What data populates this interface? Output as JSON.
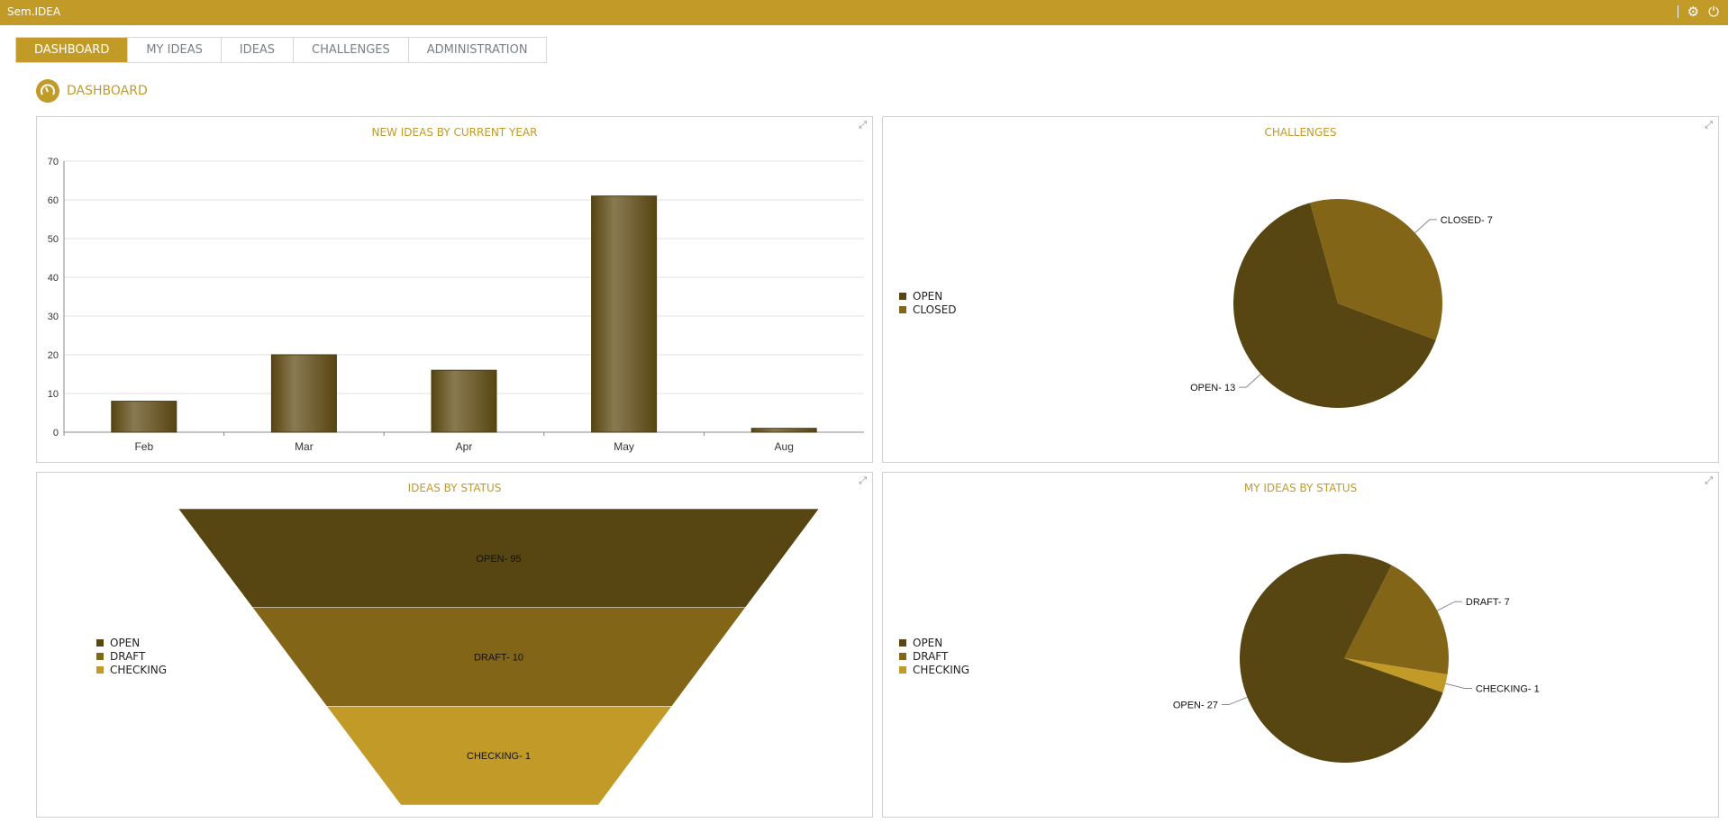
{
  "app": {
    "title": "Sem.IDEA",
    "icons": [
      "settings-icon",
      "power-icon"
    ]
  },
  "tabs": [
    {
      "label": "DASHBOARD",
      "active": true
    },
    {
      "label": "MY IDEAS"
    },
    {
      "label": "IDEAS"
    },
    {
      "label": "CHALLENGES"
    },
    {
      "label": "ADMINISTRATION"
    }
  ],
  "page": {
    "title": "DASHBOARD",
    "icon": "gauge-icon"
  },
  "colors": {
    "accent": "#c29a27",
    "open": "#574512",
    "draft": "#836518",
    "checking": "#c29a27"
  },
  "chart_data": [
    {
      "type": "bar",
      "title": "NEW IDEAS BY CURRENT YEAR",
      "categories": [
        "Feb",
        "Mar",
        "Apr",
        "May",
        "Aug"
      ],
      "values": [
        8,
        20,
        16,
        61,
        1
      ],
      "ylim": [
        0,
        70
      ],
      "yticks": [
        "0",
        "10",
        "20",
        "30",
        "40",
        "50",
        "60",
        "70"
      ],
      "grid": true
    },
    {
      "type": "pie",
      "title": "CHALLENGES",
      "legend": [
        "OPEN",
        "CLOSED"
      ],
      "slices": [
        {
          "label": "OPEN",
          "value": 13,
          "text": "OPEN- 13"
        },
        {
          "label": "CLOSED",
          "value": 7,
          "text": "CLOSED- 7"
        }
      ],
      "legend_position": "left"
    },
    {
      "type": "funnel",
      "title": "IDEAS BY STATUS",
      "legend": [
        "OPEN",
        "DRAFT",
        "CHECKING"
      ],
      "slices": [
        {
          "label": "OPEN",
          "value": 95,
          "text": "OPEN- 95"
        },
        {
          "label": "DRAFT",
          "value": 10,
          "text": "DRAFT- 10"
        },
        {
          "label": "CHECKING",
          "value": 1,
          "text": "CHECKING- 1"
        }
      ],
      "legend_position": "left"
    },
    {
      "type": "pie",
      "title": "MY IDEAS BY STATUS",
      "legend": [
        "OPEN",
        "DRAFT",
        "CHECKING"
      ],
      "slices": [
        {
          "label": "OPEN",
          "value": 27,
          "text": "OPEN- 27"
        },
        {
          "label": "DRAFT",
          "value": 7,
          "text": "DRAFT- 7"
        },
        {
          "label": "CHECKING",
          "value": 1,
          "text": "CHECKING- 1"
        }
      ],
      "legend_position": "left"
    }
  ]
}
